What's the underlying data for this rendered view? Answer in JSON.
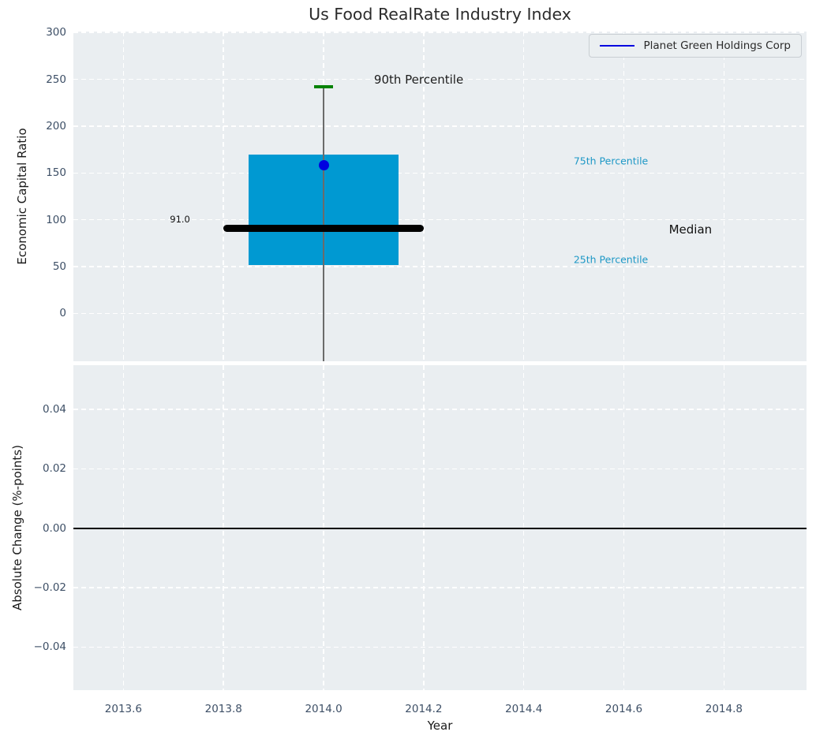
{
  "figure": {
    "title": "Us Food RealRate Industry Index",
    "background": "#ffffff",
    "axes_background": "#eaeef1",
    "grid_color": "#ffffff",
    "tick_color": "#3d4f66",
    "label_color": "#1a1a1a",
    "title_color": "#2b2b2b"
  },
  "legend": {
    "label": "Planet Green Holdings Corp",
    "line_color": "#0000e0",
    "background": "#ebeff1",
    "border_color": "#c9ced3",
    "text_color": "#2a2a2a"
  },
  "chart_data": [
    {
      "type": "boxplot",
      "title": "Us Food RealRate Industry Index",
      "xlabel": "",
      "ylabel": "Economic Capital Ratio",
      "xlim": [
        2013.5,
        2014.965
      ],
      "ylim": [
        -51,
        301
      ],
      "xticks": [
        2013.6,
        2013.8,
        2014.0,
        2014.2,
        2014.4,
        2014.6,
        2014.8
      ],
      "xtick_labels": [
        "2013.6",
        "2013.8",
        "2014.0",
        "2014.2",
        "2014.4",
        "2014.6",
        "2014.8"
      ],
      "show_xtick_labels": false,
      "yticks": [
        0,
        50,
        100,
        150,
        200,
        250,
        300
      ],
      "ytick_labels": [
        "0",
        "50",
        "100",
        "150",
        "200",
        "250",
        "300"
      ],
      "grid": true,
      "legend_position": "upper right",
      "box": {
        "x": 2014.0,
        "q1": 52,
        "median": 91,
        "q3": 170,
        "p90": 242,
        "whisker_low_clip": -51,
        "box_x_left": 2013.85,
        "box_x_right": 2014.15,
        "median_x_left": 2013.8,
        "median_x_right": 2014.2,
        "box_color": "#0099d2",
        "median_color": "#000000",
        "whisker_color": "#6b6b6b",
        "cap_color": "#058205"
      },
      "company_point": {
        "label": "Planet Green Holdings Corp",
        "x": 2014.0,
        "y": 158,
        "color": "#0000e0"
      },
      "annotations": [
        {
          "text": "90th Percentile",
          "x": 2014.19,
          "y": 250,
          "color": "#1c1c1c",
          "font_size": 15
        },
        {
          "text": "91.0",
          "x": 2013.713,
          "y": 101,
          "color": "#111111",
          "font_size": 11.5
        },
        {
          "text": "75th Percentile",
          "x": 2014.574,
          "y": 163,
          "color": "#1e98c6",
          "font_size": 12.5
        },
        {
          "text": "Median",
          "x": 2014.733,
          "y": 90,
          "color": "#111111",
          "font_size": 15
        },
        {
          "text": "25th Percentile",
          "x": 2014.574,
          "y": 58,
          "color": "#1e98c6",
          "font_size": 12.5
        }
      ]
    },
    {
      "type": "line",
      "xlabel": "Year",
      "ylabel": "Absolute Change (%-points)",
      "xlim": [
        2013.5,
        2014.965
      ],
      "ylim": [
        -0.0545,
        0.0549
      ],
      "xticks": [
        2013.6,
        2013.8,
        2014.0,
        2014.2,
        2014.4,
        2014.6,
        2014.8
      ],
      "xtick_labels": [
        "2013.6",
        "2013.8",
        "2014.0",
        "2014.2",
        "2014.4",
        "2014.6",
        "2014.8"
      ],
      "show_xtick_labels": true,
      "yticks": [
        0.04,
        0.02,
        0.0,
        -0.02,
        -0.04
      ],
      "ytick_labels": [
        "0.04",
        "0.02",
        "0.00",
        "−0.02",
        "−0.04"
      ],
      "grid": true,
      "zero_line": {
        "y": 0.0,
        "color": "#000000"
      }
    }
  ]
}
